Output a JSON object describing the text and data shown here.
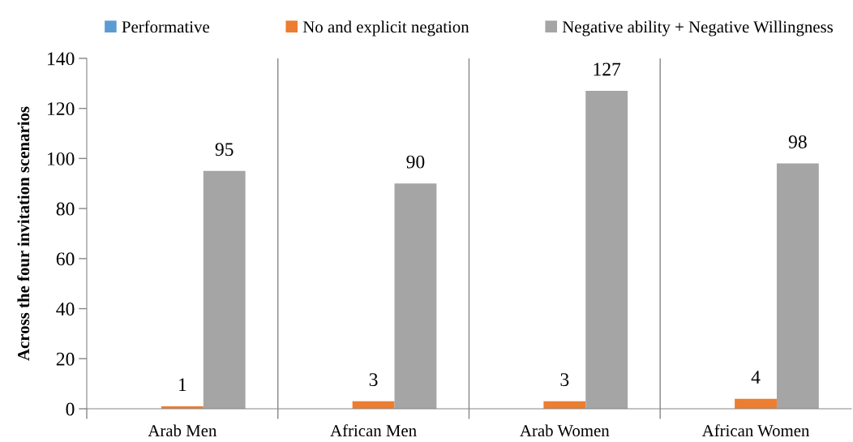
{
  "chart_data": {
    "type": "bar",
    "ylabel": "Across the four invitation scenarios",
    "categories": [
      "Arab Men",
      "African Men",
      "Arab Women",
      "African Women"
    ],
    "series": [
      {
        "name": "Performative",
        "color": "#5b9bd5",
        "values": [
          0,
          0,
          0,
          0
        ],
        "value_labels": [
          null,
          null,
          null,
          null
        ]
      },
      {
        "name": "No and explicit negation",
        "color": "#ed7d31",
        "values": [
          1,
          3,
          3,
          4
        ],
        "value_labels": [
          "1",
          "3",
          "3",
          "4"
        ]
      },
      {
        "name": "Negative ability + Negative Willingness",
        "color": "#a5a5a5",
        "values": [
          95,
          90,
          127,
          98
        ],
        "value_labels": [
          "95",
          "90",
          "127",
          "98"
        ]
      }
    ],
    "ylim": [
      0,
      140
    ],
    "yticks": [
      0,
      20,
      40,
      60,
      80,
      100,
      120,
      140
    ],
    "grid": "x",
    "legend": "top"
  }
}
